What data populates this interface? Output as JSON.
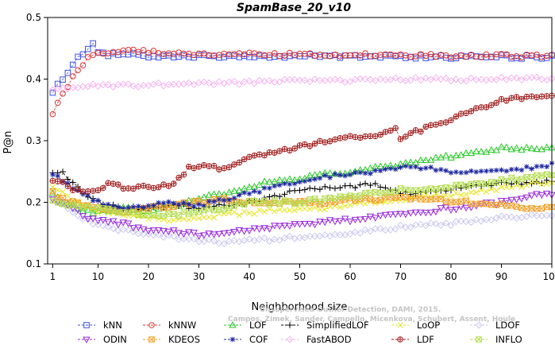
{
  "chart_data": {
    "type": "line",
    "title": "SpamBase_20_v10",
    "xlabel": "Neighborhood size",
    "ylabel": "P@n",
    "xlim": [
      0,
      100
    ],
    "ylim": [
      0.1,
      0.5
    ],
    "xticks": [
      1,
      10,
      20,
      30,
      40,
      50,
      60,
      70,
      80,
      90,
      100
    ],
    "yticks": [
      0.1,
      0.2,
      0.3,
      0.4,
      0.5
    ],
    "x_step": 1,
    "grid": false,
    "legend_position": "bottom",
    "credit_lines": [
      "Unsupervised Outlier Detection, DAMI, 2015.",
      "Campos, Zimek, Sander, Campello, Micenkova, Schubert, Assent, Houle"
    ],
    "series": [
      {
        "name": "kNN",
        "color": "#3c50e6",
        "marker": "square",
        "points": [
          [
            1,
            0.378
          ],
          [
            2,
            0.39
          ],
          [
            3,
            0.4
          ],
          [
            4,
            0.41
          ],
          [
            5,
            0.425
          ],
          [
            6,
            0.435
          ],
          [
            7,
            0.443
          ],
          [
            8,
            0.45
          ],
          [
            9,
            0.457
          ],
          [
            10,
            0.445
          ],
          [
            12,
            0.44
          ],
          [
            15,
            0.442
          ],
          [
            20,
            0.438
          ],
          [
            30,
            0.437
          ],
          [
            40,
            0.436
          ],
          [
            50,
            0.438
          ],
          [
            60,
            0.437
          ],
          [
            70,
            0.436
          ],
          [
            80,
            0.436
          ],
          [
            90,
            0.436
          ],
          [
            100,
            0.436
          ]
        ]
      },
      {
        "name": "kNNW",
        "color": "#dc3232",
        "marker": "circle",
        "points": [
          [
            1,
            0.34
          ],
          [
            2,
            0.36
          ],
          [
            3,
            0.375
          ],
          [
            4,
            0.39
          ],
          [
            5,
            0.405
          ],
          [
            6,
            0.415
          ],
          [
            7,
            0.425
          ],
          [
            8,
            0.435
          ],
          [
            9,
            0.44
          ],
          [
            10,
            0.443
          ],
          [
            14,
            0.445
          ],
          [
            17,
            0.448
          ],
          [
            20,
            0.445
          ],
          [
            30,
            0.44
          ],
          [
            40,
            0.44
          ],
          [
            50,
            0.44
          ],
          [
            60,
            0.439
          ],
          [
            70,
            0.439
          ],
          [
            80,
            0.438
          ],
          [
            90,
            0.438
          ],
          [
            100,
            0.438
          ]
        ]
      },
      {
        "name": "LOF",
        "color": "#28c828",
        "marker": "triangle-up",
        "points": [
          [
            1,
            0.215
          ],
          [
            3,
            0.2
          ],
          [
            5,
            0.195
          ],
          [
            8,
            0.185
          ],
          [
            10,
            0.185
          ],
          [
            15,
            0.19
          ],
          [
            20,
            0.188
          ],
          [
            25,
            0.195
          ],
          [
            30,
            0.205
          ],
          [
            35,
            0.215
          ],
          [
            40,
            0.225
          ],
          [
            45,
            0.235
          ],
          [
            50,
            0.24
          ],
          [
            55,
            0.245
          ],
          [
            60,
            0.25
          ],
          [
            65,
            0.255
          ],
          [
            70,
            0.262
          ],
          [
            75,
            0.268
          ],
          [
            80,
            0.275
          ],
          [
            85,
            0.28
          ],
          [
            90,
            0.287
          ],
          [
            95,
            0.288
          ],
          [
            100,
            0.288
          ]
        ]
      },
      {
        "name": "SimplifiedLOF",
        "color": "#000000",
        "marker": "plus",
        "points": [
          [
            1,
            0.245
          ],
          [
            3,
            0.25
          ],
          [
            5,
            0.23
          ],
          [
            8,
            0.21
          ],
          [
            10,
            0.2
          ],
          [
            15,
            0.19
          ],
          [
            20,
            0.192
          ],
          [
            25,
            0.196
          ],
          [
            30,
            0.19
          ],
          [
            35,
            0.196
          ],
          [
            40,
            0.2
          ],
          [
            45,
            0.21
          ],
          [
            50,
            0.22
          ],
          [
            55,
            0.225
          ],
          [
            60,
            0.225
          ],
          [
            65,
            0.23
          ],
          [
            70,
            0.215
          ],
          [
            75,
            0.215
          ],
          [
            80,
            0.222
          ],
          [
            85,
            0.228
          ],
          [
            90,
            0.23
          ],
          [
            95,
            0.232
          ],
          [
            100,
            0.234
          ]
        ]
      },
      {
        "name": "LoOP",
        "color": "#e6e628",
        "marker": "x",
        "points": [
          [
            1,
            0.225
          ],
          [
            3,
            0.215
          ],
          [
            5,
            0.205
          ],
          [
            8,
            0.195
          ],
          [
            10,
            0.185
          ],
          [
            15,
            0.18
          ],
          [
            20,
            0.175
          ],
          [
            25,
            0.17
          ],
          [
            30,
            0.175
          ],
          [
            35,
            0.18
          ],
          [
            40,
            0.183
          ],
          [
            45,
            0.188
          ],
          [
            50,
            0.188
          ],
          [
            55,
            0.19
          ],
          [
            60,
            0.195
          ],
          [
            65,
            0.2
          ],
          [
            70,
            0.205
          ],
          [
            75,
            0.21
          ],
          [
            80,
            0.212
          ],
          [
            85,
            0.218
          ],
          [
            90,
            0.222
          ],
          [
            95,
            0.228
          ],
          [
            100,
            0.233
          ]
        ]
      },
      {
        "name": "LDOF",
        "color": "#c8c8f0",
        "marker": "diamond",
        "points": [
          [
            1,
            0.205
          ],
          [
            3,
            0.2
          ],
          [
            5,
            0.185
          ],
          [
            8,
            0.17
          ],
          [
            10,
            0.165
          ],
          [
            15,
            0.155
          ],
          [
            20,
            0.15
          ],
          [
            25,
            0.143
          ],
          [
            30,
            0.138
          ],
          [
            35,
            0.135
          ],
          [
            40,
            0.138
          ],
          [
            45,
            0.14
          ],
          [
            50,
            0.145
          ],
          [
            55,
            0.145
          ],
          [
            60,
            0.15
          ],
          [
            65,
            0.155
          ],
          [
            70,
            0.16
          ],
          [
            75,
            0.165
          ],
          [
            80,
            0.165
          ],
          [
            85,
            0.17
          ],
          [
            90,
            0.175
          ],
          [
            95,
            0.178
          ],
          [
            100,
            0.18
          ]
        ]
      },
      {
        "name": "ODIN",
        "color": "#9628dc",
        "marker": "triangle-down",
        "points": [
          [
            1,
            0.205
          ],
          [
            3,
            0.2
          ],
          [
            5,
            0.19
          ],
          [
            8,
            0.175
          ],
          [
            10,
            0.17
          ],
          [
            15,
            0.165
          ],
          [
            20,
            0.155
          ],
          [
            25,
            0.152
          ],
          [
            30,
            0.148
          ],
          [
            35,
            0.15
          ],
          [
            40,
            0.155
          ],
          [
            45,
            0.16
          ],
          [
            50,
            0.165
          ],
          [
            55,
            0.168
          ],
          [
            60,
            0.172
          ],
          [
            65,
            0.175
          ],
          [
            70,
            0.18
          ],
          [
            75,
            0.185
          ],
          [
            80,
            0.19
          ],
          [
            85,
            0.195
          ],
          [
            90,
            0.2
          ],
          [
            95,
            0.21
          ],
          [
            100,
            0.215
          ]
        ]
      },
      {
        "name": "KDEOS",
        "color": "#f0a028",
        "marker": "square-x",
        "points": [
          [
            1,
            0.215
          ],
          [
            3,
            0.205
          ],
          [
            5,
            0.2
          ],
          [
            8,
            0.195
          ],
          [
            10,
            0.19
          ],
          [
            15,
            0.185
          ],
          [
            20,
            0.19
          ],
          [
            25,
            0.195
          ],
          [
            30,
            0.2
          ],
          [
            35,
            0.205
          ],
          [
            40,
            0.2
          ],
          [
            45,
            0.2
          ],
          [
            50,
            0.2
          ],
          [
            55,
            0.2
          ],
          [
            60,
            0.205
          ],
          [
            65,
            0.205
          ],
          [
            70,
            0.208
          ],
          [
            75,
            0.205
          ],
          [
            80,
            0.202
          ],
          [
            85,
            0.2
          ],
          [
            90,
            0.195
          ],
          [
            95,
            0.192
          ],
          [
            100,
            0.19
          ]
        ]
      },
      {
        "name": "COF",
        "color": "#1e28a0",
        "marker": "asterisk",
        "points": [
          [
            1,
            0.245
          ],
          [
            3,
            0.235
          ],
          [
            5,
            0.225
          ],
          [
            8,
            0.21
          ],
          [
            10,
            0.2
          ],
          [
            15,
            0.19
          ],
          [
            20,
            0.195
          ],
          [
            25,
            0.2
          ],
          [
            30,
            0.195
          ],
          [
            35,
            0.205
          ],
          [
            40,
            0.215
          ],
          [
            45,
            0.225
          ],
          [
            50,
            0.235
          ],
          [
            55,
            0.242
          ],
          [
            60,
            0.245
          ],
          [
            65,
            0.25
          ],
          [
            70,
            0.257
          ],
          [
            75,
            0.255
          ],
          [
            80,
            0.25
          ],
          [
            85,
            0.248
          ],
          [
            90,
            0.25
          ],
          [
            95,
            0.255
          ],
          [
            100,
            0.262
          ]
        ]
      },
      {
        "name": "FastABOD",
        "color": "#f5b4f0",
        "marker": "diamond",
        "points": [
          [
            1,
            0.38
          ],
          [
            3,
            0.385
          ],
          [
            5,
            0.388
          ],
          [
            8,
            0.39
          ],
          [
            10,
            0.39
          ],
          [
            15,
            0.39
          ],
          [
            20,
            0.39
          ],
          [
            25,
            0.392
          ],
          [
            30,
            0.393
          ],
          [
            35,
            0.393
          ],
          [
            40,
            0.395
          ],
          [
            45,
            0.397
          ],
          [
            50,
            0.398
          ],
          [
            55,
            0.398
          ],
          [
            60,
            0.398
          ],
          [
            65,
            0.398
          ],
          [
            70,
            0.4
          ],
          [
            75,
            0.4
          ],
          [
            80,
            0.399
          ],
          [
            85,
            0.4
          ],
          [
            90,
            0.4
          ],
          [
            95,
            0.4
          ],
          [
            100,
            0.4
          ]
        ]
      },
      {
        "name": "LDF",
        "color": "#a01e1e",
        "marker": "circle-plus",
        "points": [
          [
            1,
            0.235
          ],
          [
            3,
            0.23
          ],
          [
            5,
            0.22
          ],
          [
            8,
            0.218
          ],
          [
            10,
            0.22
          ],
          [
            12,
            0.23
          ],
          [
            15,
            0.225
          ],
          [
            20,
            0.225
          ],
          [
            25,
            0.23
          ],
          [
            28,
            0.255
          ],
          [
            32,
            0.26
          ],
          [
            35,
            0.253
          ],
          [
            37,
            0.26
          ],
          [
            40,
            0.275
          ],
          [
            45,
            0.28
          ],
          [
            50,
            0.29
          ],
          [
            55,
            0.3
          ],
          [
            60,
            0.305
          ],
          [
            65,
            0.31
          ],
          [
            69,
            0.32
          ],
          [
            70,
            0.305
          ],
          [
            75,
            0.32
          ],
          [
            80,
            0.335
          ],
          [
            85,
            0.35
          ],
          [
            88,
            0.355
          ],
          [
            90,
            0.365
          ],
          [
            95,
            0.37
          ],
          [
            100,
            0.373
          ]
        ]
      },
      {
        "name": "INFLO",
        "color": "#b4dc50",
        "marker": "square-x",
        "points": [
          [
            1,
            0.2
          ],
          [
            3,
            0.198
          ],
          [
            5,
            0.195
          ],
          [
            8,
            0.192
          ],
          [
            10,
            0.19
          ],
          [
            15,
            0.185
          ],
          [
            20,
            0.18
          ],
          [
            25,
            0.18
          ],
          [
            30,
            0.185
          ],
          [
            35,
            0.19
          ],
          [
            40,
            0.2
          ],
          [
            45,
            0.2
          ],
          [
            50,
            0.2
          ],
          [
            55,
            0.205
          ],
          [
            60,
            0.21
          ],
          [
            65,
            0.215
          ],
          [
            70,
            0.22
          ],
          [
            75,
            0.223
          ],
          [
            80,
            0.225
          ],
          [
            85,
            0.23
          ],
          [
            90,
            0.235
          ],
          [
            95,
            0.24
          ],
          [
            100,
            0.245
          ]
        ]
      }
    ],
    "legend_order": [
      [
        "kNN",
        "kNNW",
        "LOF",
        "SimplifiedLOF",
        "LoOP",
        "LDOF"
      ],
      [
        "ODIN",
        "KDEOS",
        "COF",
        "FastABOD",
        "LDF",
        "INFLO"
      ]
    ]
  }
}
